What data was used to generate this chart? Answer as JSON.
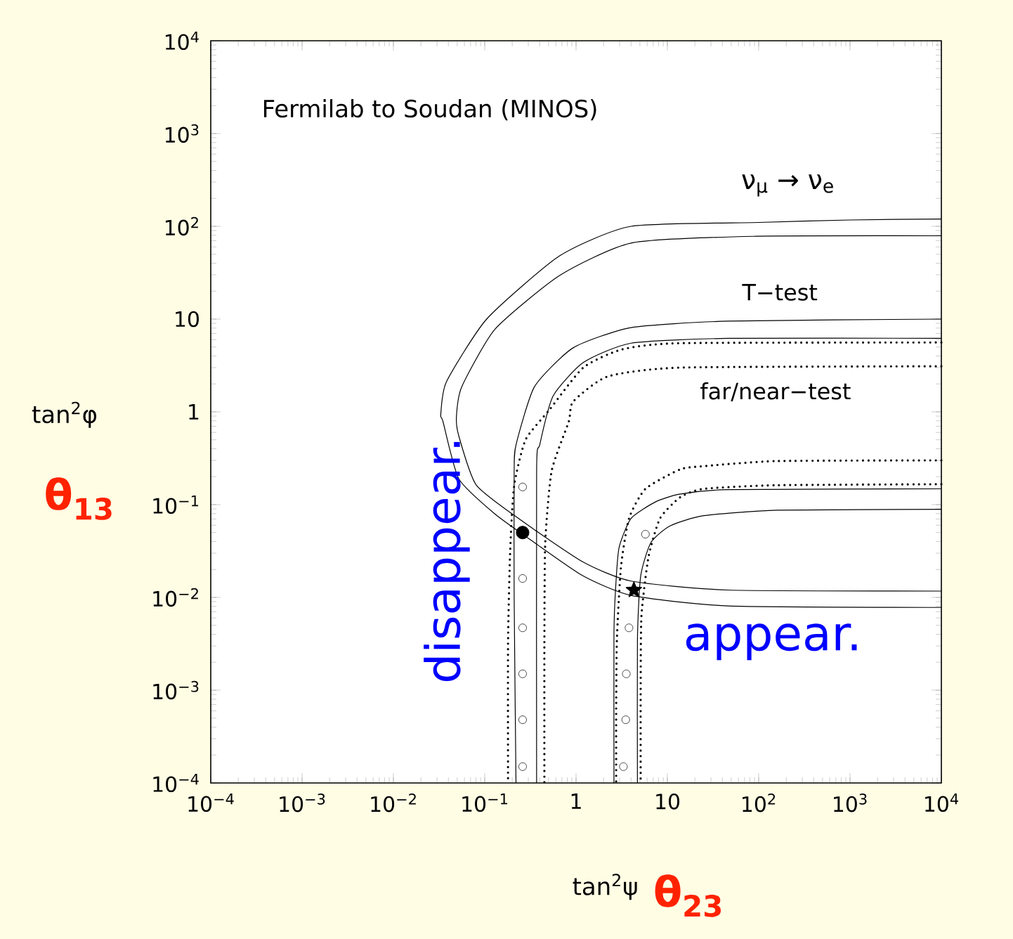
{
  "chart_data": {
    "type": "line",
    "log": "xy",
    "xlabel": "tan$^{2}$ψ",
    "ylabel": "tan$^{2}$φ",
    "xlim": [
      0.0001,
      10000
    ],
    "ylim": [
      0.0001,
      10000
    ],
    "xticks": [
      {
        "value": 0.0001,
        "label": "10$^{−4}$"
      },
      {
        "value": 0.001,
        "label": "10$^{−3}$"
      },
      {
        "value": 0.01,
        "label": "10$^{−2}$"
      },
      {
        "value": 0.1,
        "label": "10$^{−1}$"
      },
      1,
      10,
      {
        "value": 100,
        "label": "10$^{2}$"
      },
      {
        "value": 1000,
        "label": "10$^{3}$"
      },
      {
        "value": 10000,
        "label": "10$^{4}$"
      }
    ],
    "yticks": [
      {
        "value": 0.0001,
        "label": "10$^{−4}$"
      },
      {
        "value": 0.001,
        "label": "10$^{−3}$"
      },
      {
        "value": 0.01,
        "label": "10$^{−2}$"
      },
      {
        "value": 0.1,
        "label": "10$^{−1}$"
      },
      1,
      10,
      {
        "value": 100,
        "label": "10$^{2}$"
      },
      {
        "value": 1000,
        "label": "10$^{3}$"
      },
      {
        "value": 10000,
        "label": "10$^{4}$"
      }
    ],
    "annotations": [
      "Fermilab to Soudan (MINOS)",
      "ν$_{μ}$ → ν$_{e}$",
      "T−test",
      "far/near−test",
      "disappear.",
      "appear.",
      "θ$_{13}$",
      "θ$_{23}$"
    ],
    "series": [
      {
        "line_style": "solid",
        "color": "#000000",
        "x": [
          10000,
          1000,
          100,
          4.0,
          0.66,
          0.105,
          0.038,
          0.033,
          0.035,
          0.052,
          0.13,
          0.35,
          1.2,
          4.0,
          46,
          10000
        ],
        "values": [
          120,
          117,
          110,
          100,
          48,
          10,
          2.1,
          0.93,
          0.78,
          0.19,
          0.079,
          0.039,
          0.017,
          0.0105,
          0.0081,
          0.0078
        ]
      },
      {
        "line_style": "solid",
        "color": "#000000",
        "x": [
          10000,
          87,
          4.0,
          0.66,
          0.13,
          0.056,
          0.049,
          0.052,
          0.081,
          0.26,
          1.2,
          4.0,
          46,
          10000
        ],
        "values": [
          79,
          78,
          66,
          29.5,
          7.8,
          1.86,
          0.89,
          0.55,
          0.162,
          0.066,
          0.024,
          0.015,
          0.012,
          0.0117
        ]
      },
      {
        "line_style": "solid",
        "color": "#000000",
        "x": [
          10000,
          46,
          4.0,
          0.93,
          0.35,
          0.22,
          0.21,
          0.21,
          0.22
        ],
        "values": [
          10,
          9.5,
          8.1,
          4.9,
          1.86,
          0.44,
          0.23,
          0.01,
          0.0001
        ]
      },
      {
        "line_style": "solid",
        "color": "#000000",
        "x": [
          10000,
          46,
          4.0,
          1.2,
          0.56,
          0.4,
          0.37,
          0.37
        ],
        "values": [
          6.2,
          6.2,
          5.5,
          3.4,
          1.48,
          0.44,
          0.23,
          0.0001
        ]
      },
      {
        "line_style": "solid",
        "color": "#000000",
        "x": [
          10000,
          46,
          13.8,
          7.4,
          4.0,
          2.95,
          2.7,
          2.6,
          2.6
        ],
        "values": [
          0.148,
          0.145,
          0.13,
          0.107,
          0.071,
          0.034,
          0.0117,
          0.004,
          0.0001
        ]
      },
      {
        "line_style": "solid",
        "color": "#000000",
        "x": [
          10000,
          160,
          25,
          10.7,
          6.6,
          5.1,
          4.7,
          4.7
        ],
        "values": [
          0.089,
          0.087,
          0.076,
          0.059,
          0.039,
          0.017,
          0.0035,
          0.0001
        ]
      },
      {
        "line_style": "dotted",
        "color": "#000000",
        "x": [
          10000,
          13.8,
          3.16,
          1.2,
          0.51,
          0.28,
          0.21,
          0.19,
          0.18,
          0.18
        ],
        "values": [
          5.6,
          5.5,
          4.7,
          3.0,
          1.05,
          0.5,
          0.16,
          0.032,
          0.0032,
          0.0001
        ]
      },
      {
        "line_style": "dotted",
        "color": "#000000",
        "x": [
          10000,
          13.8,
          2.2,
          0.93,
          0.83,
          0.54,
          0.46,
          0.45,
          0.45
        ],
        "values": [
          3.1,
          3.0,
          2.4,
          1.29,
          0.78,
          0.23,
          0.039,
          0.0032,
          0.0001
        ]
      },
      {
        "line_style": "dotted",
        "color": "#000000",
        "x": [
          10000,
          160,
          25,
          13.8,
          5.75,
          3.8,
          3.1,
          2.8,
          2.75,
          2.75
        ],
        "values": [
          0.3,
          0.295,
          0.26,
          0.24,
          0.148,
          0.071,
          0.021,
          0.0035,
          0.00063,
          0.0001
        ]
      },
      {
        "line_style": "dotted",
        "color": "#000000",
        "x": [
          10000,
          160,
          25,
          13.8,
          8.3,
          6.2,
          5.2,
          5.1,
          5.1
        ],
        "values": [
          0.166,
          0.162,
          0.148,
          0.12,
          0.071,
          0.027,
          0.0063,
          0.001,
          0.0001
        ]
      },
      {
        "type": "scatter",
        "marker": "circle",
        "color": "#ffffff",
        "x": [
          0.26,
          0.26,
          0.26,
          0.26,
          0.26,
          0.26,
          5.75,
          3.8,
          3.55,
          3.5,
          3.3
        ],
        "values": [
          0.155,
          0.016,
          0.0047,
          0.0015,
          0.00048,
          0.00015,
          0.048,
          0.0047,
          0.0015,
          0.00048,
          0.00015
        ]
      },
      {
        "type": "scatter",
        "marker": "circle",
        "color": "#000000",
        "x": [
          0.26
        ],
        "values": [
          0.05
        ]
      },
      {
        "type": "scatter",
        "marker": "star",
        "color": "#000000",
        "x": [
          4.3
        ],
        "values": [
          0.012
        ]
      }
    ]
  }
}
